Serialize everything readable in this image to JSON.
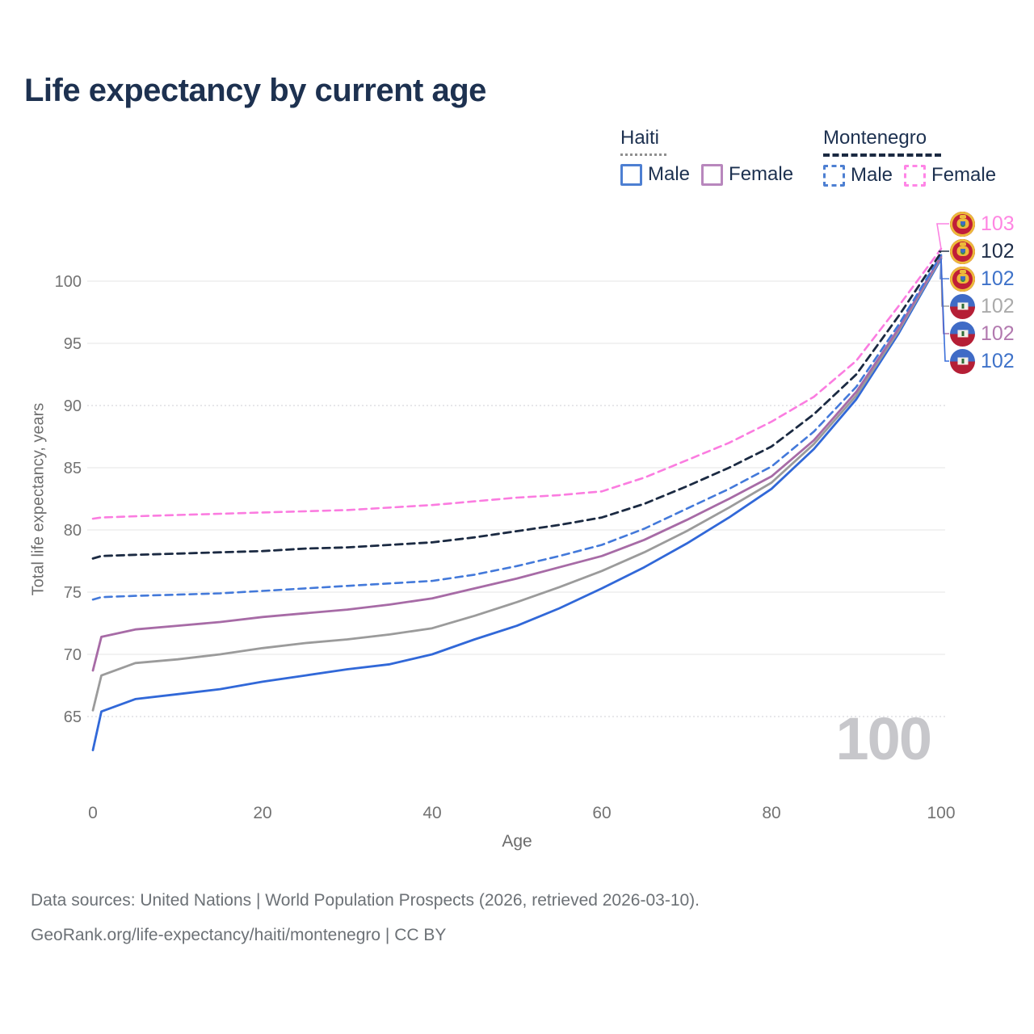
{
  "page": {
    "title": "Life expectancy by current age",
    "watermark": "100",
    "footer_line1": "Data sources: United Nations | World Population Prospects (2026, retrieved 2026-03-10).",
    "footer_line2": "GeoRank.org/life-expectancy/haiti/montenegro | CC BY"
  },
  "legend": {
    "haiti": {
      "title": "Haiti",
      "male_label": "Male",
      "female_label": "Female",
      "male_color": "#4d7fd2",
      "female_color": "#b887bd"
    },
    "montenegro": {
      "title": "Montenegro",
      "male_label": "Male",
      "female_label": "Female",
      "male_color": "#4d7fd2",
      "female_color": "#ff85e6"
    }
  },
  "chart_data": {
    "type": "line",
    "title": "Life expectancy by current age",
    "xlabel": "Age",
    "ylabel": "Total life expectancy, years",
    "xlim": [
      0,
      100
    ],
    "ylim": [
      62,
      103
    ],
    "grid": true,
    "xticks": [
      0,
      20,
      40,
      60,
      80,
      100
    ],
    "yticks": [
      {
        "v": 65,
        "dotted": true
      },
      {
        "v": 70,
        "dotted": false
      },
      {
        "v": 75,
        "dotted": false
      },
      {
        "v": 80,
        "dotted": false
      },
      {
        "v": 85,
        "dotted": false
      },
      {
        "v": 90,
        "dotted": true
      },
      {
        "v": 95,
        "dotted": false
      },
      {
        "v": 100,
        "dotted": false
      }
    ],
    "ages": [
      0,
      1,
      5,
      10,
      15,
      20,
      25,
      30,
      35,
      40,
      45,
      50,
      55,
      60,
      65,
      70,
      75,
      80,
      85,
      90,
      95,
      100
    ],
    "series": [
      {
        "id": "haiti-male",
        "name": "Haiti Male",
        "color": "#3168d8",
        "dash": false,
        "width": 2.8,
        "values": [
          62.3,
          65.4,
          66.4,
          66.8,
          67.2,
          67.8,
          68.3,
          68.8,
          69.2,
          70.0,
          71.2,
          72.3,
          73.7,
          75.3,
          77.0,
          78.9,
          81.0,
          83.3,
          86.5,
          90.5,
          95.8,
          101.8
        ]
      },
      {
        "id": "haiti-all",
        "name": "Haiti Both sexes",
        "color": "#9b9b9b",
        "dash": false,
        "width": 2.8,
        "values": [
          65.5,
          68.3,
          69.3,
          69.6,
          70.0,
          70.5,
          70.9,
          71.2,
          71.6,
          72.1,
          73.1,
          74.2,
          75.4,
          76.7,
          78.2,
          79.9,
          81.8,
          83.8,
          86.9,
          90.8,
          96.0,
          101.9
        ]
      },
      {
        "id": "haiti-female",
        "name": "Haiti Female",
        "color": "#a76ba6",
        "dash": false,
        "width": 2.8,
        "values": [
          68.7,
          71.4,
          72.0,
          72.3,
          72.6,
          73.0,
          73.3,
          73.6,
          74.0,
          74.5,
          75.3,
          76.1,
          77.0,
          77.9,
          79.2,
          80.8,
          82.5,
          84.3,
          87.2,
          91.1,
          96.2,
          102.0
        ]
      },
      {
        "id": "montenegro-male",
        "name": "Montenegro Male",
        "color": "#4379da",
        "dash": true,
        "width": 2.6,
        "values": [
          74.4,
          74.6,
          74.7,
          74.8,
          74.9,
          75.1,
          75.3,
          75.5,
          75.7,
          75.9,
          76.4,
          77.1,
          77.9,
          78.8,
          80.1,
          81.7,
          83.3,
          85.1,
          87.9,
          91.5,
          96.5,
          102.1
        ]
      },
      {
        "id": "montenegro-all",
        "name": "Montenegro Both sexes",
        "color": "#1b2a42",
        "dash": true,
        "width": 2.8,
        "values": [
          77.7,
          77.9,
          78.0,
          78.1,
          78.2,
          78.3,
          78.5,
          78.6,
          78.8,
          79.0,
          79.4,
          79.9,
          80.4,
          81.0,
          82.1,
          83.5,
          85.0,
          86.7,
          89.3,
          92.5,
          97.2,
          102.3
        ]
      },
      {
        "id": "montenegro-female",
        "name": "Montenegro Female",
        "color": "#fb7ce0",
        "dash": true,
        "width": 2.6,
        "values": [
          80.9,
          81.0,
          81.1,
          81.2,
          81.3,
          81.4,
          81.5,
          81.6,
          81.8,
          82.0,
          82.3,
          82.6,
          82.8,
          83.1,
          84.2,
          85.6,
          87.0,
          88.7,
          90.7,
          93.6,
          98.0,
          102.6
        ]
      }
    ],
    "end_labels": [
      {
        "value": "103",
        "color": "#ff85e2",
        "flag": "montenegro",
        "series": "montenegro-female"
      },
      {
        "value": "102",
        "color": "#1d2c47",
        "flag": "montenegro",
        "series": "montenegro-all"
      },
      {
        "value": "102",
        "color": "#3e72c9",
        "flag": "montenegro",
        "series": "montenegro-male"
      },
      {
        "value": "102",
        "color": "#aaaaaa",
        "flag": "haiti",
        "series": "haiti-all"
      },
      {
        "value": "102",
        "color": "#b279af",
        "flag": "haiti",
        "series": "haiti-female"
      },
      {
        "value": "102",
        "color": "#3e72c9",
        "flag": "haiti",
        "series": "haiti-male"
      }
    ]
  }
}
